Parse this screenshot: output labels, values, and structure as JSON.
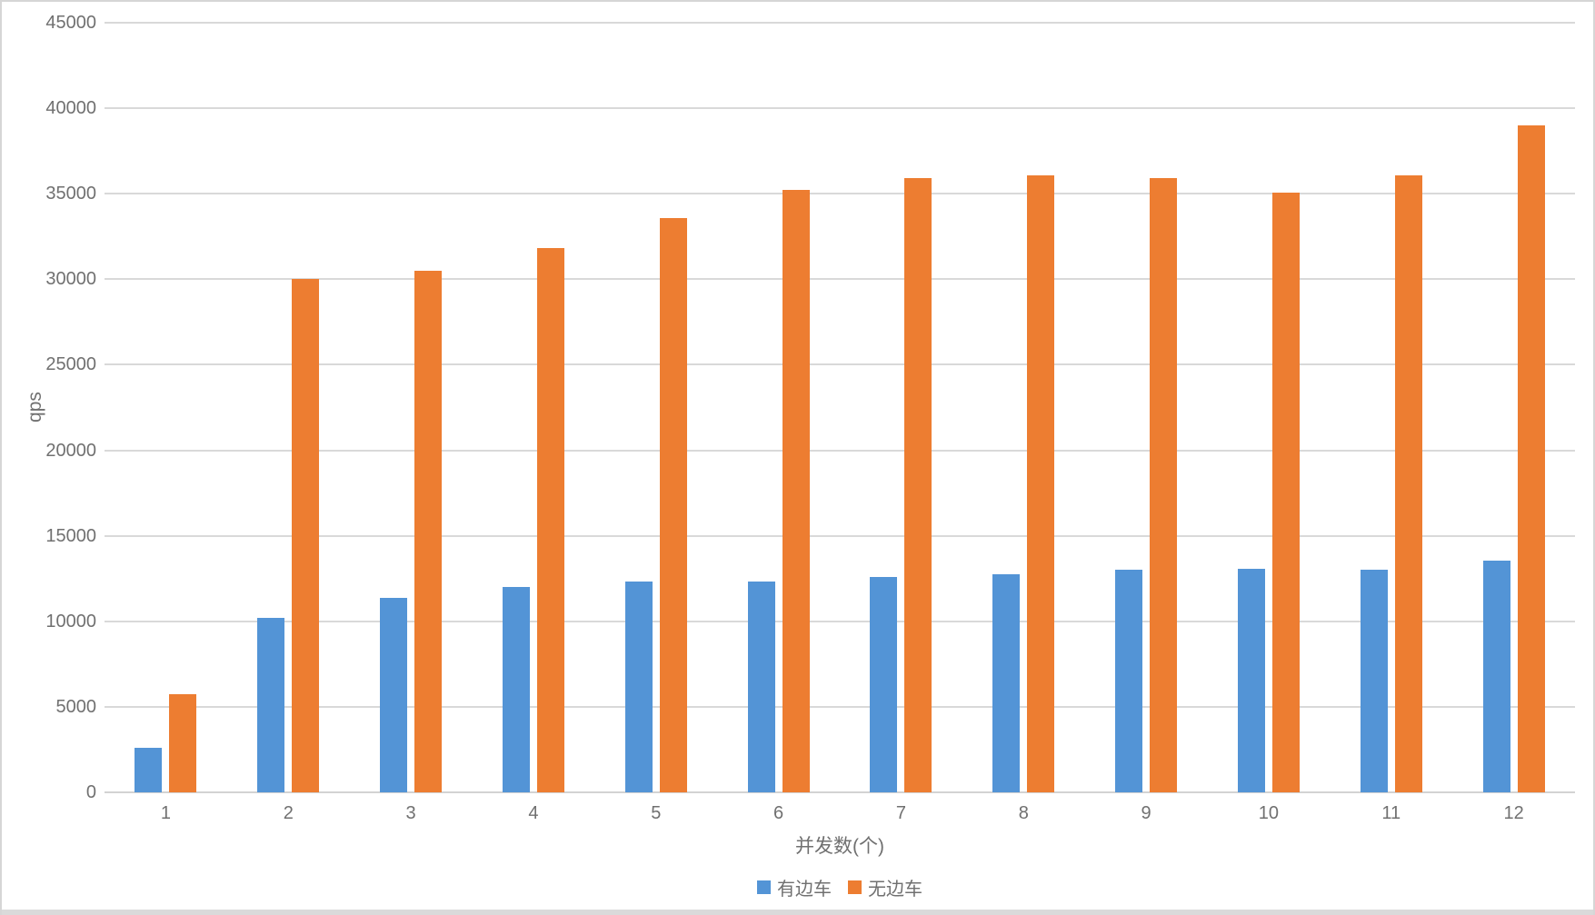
{
  "chart_data": {
    "type": "bar",
    "xlabel": "并发数(个)",
    "ylabel": "qps",
    "categories": [
      "1",
      "2",
      "3",
      "4",
      "5",
      "6",
      "7",
      "8",
      "9",
      "10",
      "11",
      "12"
    ],
    "series": [
      {
        "key": "with-sidecar",
        "name": "有边车",
        "color": "#5394d6",
        "values": [
          2600,
          10200,
          11350,
          12000,
          12300,
          12350,
          12600,
          12750,
          13000,
          13050,
          13000,
          13550
        ]
      },
      {
        "key": "without-sidecar",
        "name": "无边车",
        "color": "#ed7d31",
        "values": [
          5750,
          30000,
          30500,
          31850,
          33600,
          35250,
          35900,
          36050,
          35900,
          35050,
          36100,
          39000
        ]
      }
    ],
    "ylim": [
      0,
      45000
    ],
    "ytick_step": 5000,
    "grid": true,
    "legend_position": "bottom"
  },
  "colors": {
    "axis_text": "#707070",
    "gridline": "#d9d9d9",
    "background": "#ffffff"
  }
}
